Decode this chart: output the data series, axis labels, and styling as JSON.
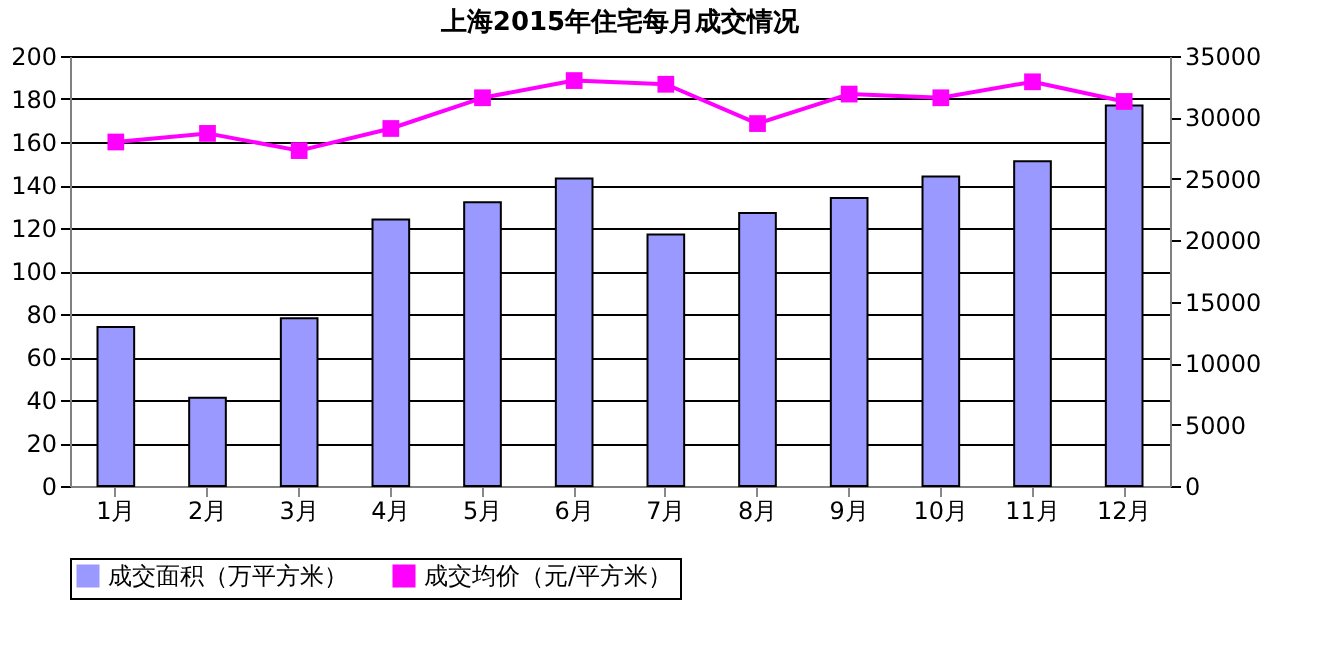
{
  "chart_data": {
    "type": "bar",
    "title": "上海2015年住宅每月成交情况",
    "categories": [
      "1月",
      "2月",
      "3月",
      "4月",
      "5月",
      "6月",
      "7月",
      "8月",
      "9月",
      "10月",
      "11月",
      "12月"
    ],
    "series": [
      {
        "name": "成交面积（万平方米）",
        "color": "#9999ff",
        "values": [
          74,
          41,
          78,
          124,
          132,
          143,
          117,
          127,
          134,
          144,
          151,
          177
        ]
      },
      {
        "name": "成交均价（元/平方米）",
        "type": "line",
        "axis": "y2",
        "color": "#ff00ff",
        "marker": "square",
        "values": [
          28000,
          28700,
          27300,
          29100,
          31600,
          33000,
          32700,
          29500,
          31900,
          31600,
          32900,
          31300
        ]
      }
    ],
    "ylim": [
      0,
      200
    ],
    "yticks": [
      0,
      20,
      40,
      60,
      80,
      100,
      120,
      140,
      160,
      180,
      200
    ],
    "y2lim": [
      0,
      35000
    ],
    "y2ticks": [
      0,
      5000,
      10000,
      15000,
      20000,
      25000,
      30000,
      35000
    ],
    "grid": "y",
    "legend": "bottom"
  }
}
